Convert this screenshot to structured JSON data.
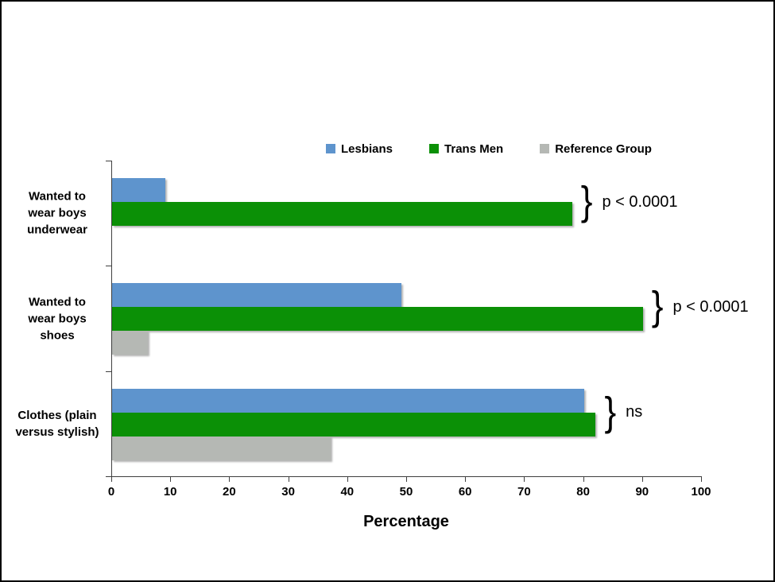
{
  "chart_data": {
    "type": "bar",
    "orientation": "horizontal",
    "title": "",
    "xlabel": "Percentage",
    "xlim": [
      0,
      100
    ],
    "xticks": [
      0,
      10,
      20,
      30,
      40,
      50,
      60,
      70,
      80,
      90,
      100
    ],
    "grid": false,
    "legend_position": "top",
    "categories": [
      "Wanted to wear boys underwear",
      "Wanted to wear boys shoes",
      "Clothes (plain versus stylish)"
    ],
    "category_label_lines": [
      [
        "Wanted to",
        "wear boys",
        "underwear"
      ],
      [
        "Wanted to",
        "wear boys",
        "shoes"
      ],
      [
        "Clothes (plain",
        "versus stylish)"
      ]
    ],
    "series": [
      {
        "name": "Lesbians",
        "color": "#5E94CD",
        "values": [
          9,
          49,
          80
        ]
      },
      {
        "name": "Trans Men",
        "color": "#0B9006",
        "values": [
          78,
          90,
          82
        ]
      },
      {
        "name": "Reference Group",
        "color": "#B5B8B4",
        "values": [
          null,
          6,
          37
        ]
      }
    ],
    "annotations": [
      {
        "category": "Wanted to wear boys underwear",
        "text": "p < 0.0001"
      },
      {
        "category": "Wanted to wear boys shoes",
        "text": "p < 0.0001"
      },
      {
        "category": "Clothes (plain versus stylish)",
        "text": "ns"
      }
    ],
    "axis_color": "#3F3F3F",
    "text_color": "#000000",
    "background": "#FFFFFF"
  }
}
